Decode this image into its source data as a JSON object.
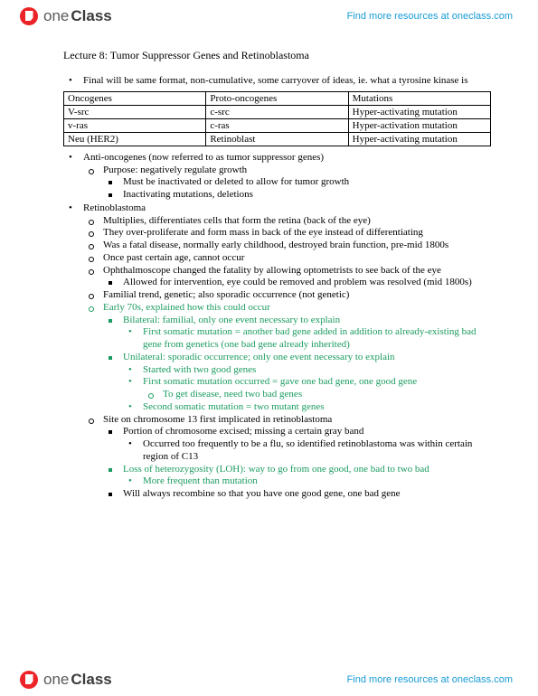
{
  "brand": {
    "part1": "one",
    "part2": "Class"
  },
  "find_link": "Find more resources at oneclass.com",
  "title": "Lecture 8:  Tumor Suppressor Genes and Retinoblastoma",
  "intro": "Final will be same format, non-cumulative, some carryover of ideas, ie. what a tyrosine kinase is",
  "table": {
    "rows": [
      [
        "Oncogenes",
        "Proto-oncogenes",
        "Mutations"
      ],
      [
        "V-src",
        "c-src",
        "Hyper-activating mutation"
      ],
      [
        "v-ras",
        "c-ras",
        "Hyper-activation mutation"
      ],
      [
        "Neu (HER2)",
        "Retinoblast",
        "Hyper-activating mutation"
      ]
    ]
  },
  "b1": {
    "t": "Anti-oncogenes (now referred to as tumor suppressor genes)",
    "c1": "Purpose: negatively regulate growth",
    "c1a": "Must be inactivated or deleted to allow for tumor growth",
    "c1b": "Inactivating mutations, deletions"
  },
  "b2": {
    "t": "Retinoblastoma",
    "c1": "Multiplies, differentiates cells that form the retina (back of the eye)",
    "c2": "They over-proliferate and form mass in back of the eye instead of differentiating",
    "c3": "Was a fatal disease, normally early childhood, destroyed brain function, pre-mid 1800s",
    "c4": "Once past certain age, cannot occur",
    "c5": "Ophthalmoscope changed the fatality by allowing optometrists to see back of the eye",
    "c5a": "Allowed for intervention, eye could be removed and problem was resolved (mid 1800s)",
    "c6": "Familial trend, genetic; also sporadic occurrence (not genetic)",
    "c7": "Early 70s, explained how this could occur",
    "c7a": "Bilateral: familial, only one event necessary to explain",
    "c7a1": "First somatic mutation = another bad gene added in addition to already-existing bad gene from genetics (one bad gene already inherited)",
    "c7b": "Unilateral: sporadic occurrence; only one event necessary to explain",
    "c7b1": "Started with two good genes",
    "c7b2": "First somatic mutation occurred = gave one bad gene, one good gene",
    "c7b2a": "To get disease, need two bad genes",
    "c7b3": "Second somatic mutation = two mutant genes",
    "c8": "Site on chromosome 13 first implicated in retinoblastoma",
    "c8a": "Portion of chromosome excised; missing a certain gray band",
    "c8a1": "Occurred too frequently to be a flu, so identified retinoblastoma was within certain region of C13",
    "c8b": "Loss of heterozygosity (LOH): way to go from one good, one bad to two bad",
    "c8b1": "More frequent than mutation",
    "c8c": "Will always recombine so that you have one good gene, one bad gene"
  }
}
